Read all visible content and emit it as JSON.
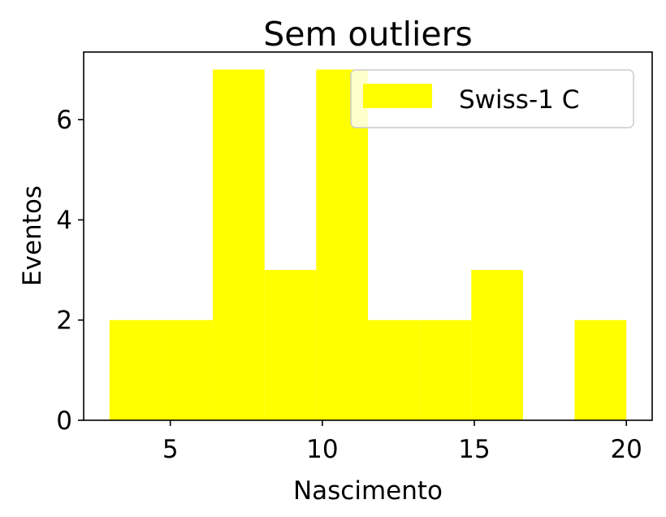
{
  "chart_data": {
    "type": "bar",
    "title": "Sem outliers",
    "xlabel": "Nascimento",
    "ylabel": "Eventos",
    "xlim": [
      2.15,
      20.85
    ],
    "ylim": [
      0,
      7.35
    ],
    "x_ticks": [
      5,
      10,
      15,
      20
    ],
    "y_ticks": [
      0,
      2,
      4,
      6
    ],
    "grid": false,
    "legend_position": "top-right",
    "bar_color": "#ffff00",
    "series": [
      {
        "name": "Swiss-1 C",
        "bins": [
          {
            "start": 3.0,
            "end": 4.7,
            "count": 2
          },
          {
            "start": 4.7,
            "end": 6.4,
            "count": 2
          },
          {
            "start": 6.4,
            "end": 8.1,
            "count": 7
          },
          {
            "start": 8.1,
            "end": 9.8,
            "count": 3
          },
          {
            "start": 9.8,
            "end": 11.5,
            "count": 7
          },
          {
            "start": 11.5,
            "end": 13.2,
            "count": 2
          },
          {
            "start": 13.2,
            "end": 14.9,
            "count": 2
          },
          {
            "start": 14.9,
            "end": 16.6,
            "count": 3
          },
          {
            "start": 16.6,
            "end": 18.3,
            "count": 0
          },
          {
            "start": 18.3,
            "end": 20.0,
            "count": 2
          }
        ]
      }
    ]
  }
}
